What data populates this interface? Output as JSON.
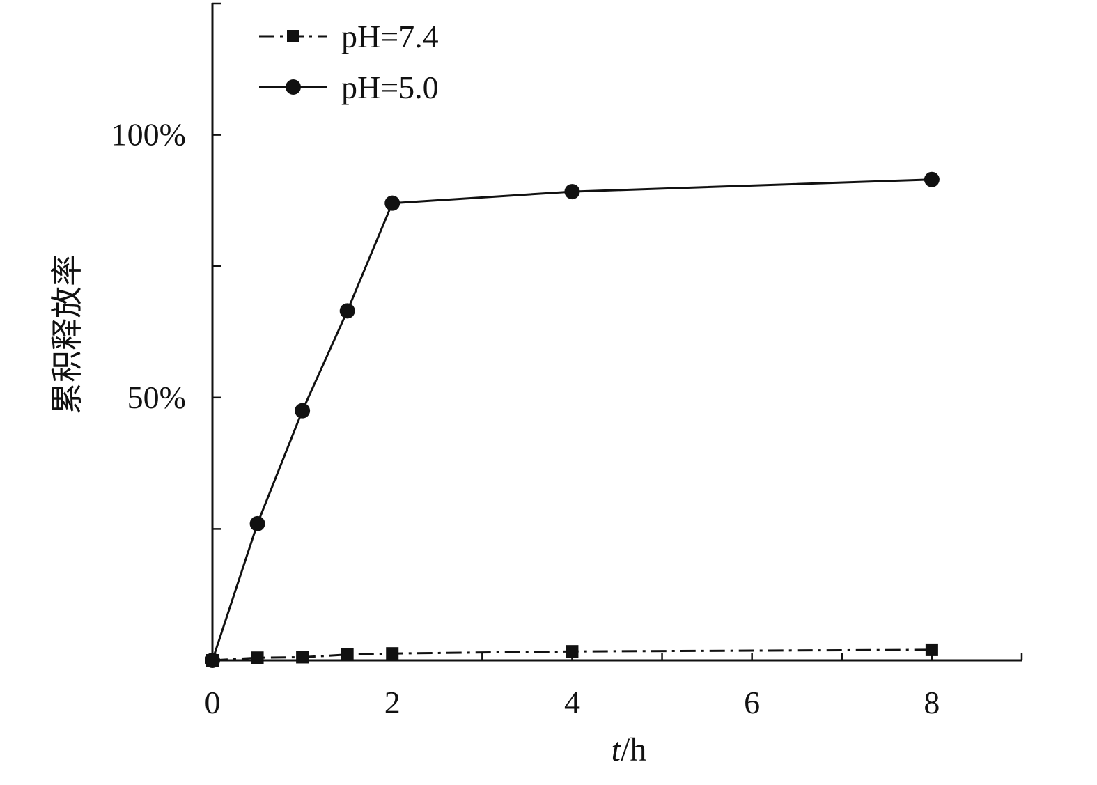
{
  "chart_data": {
    "type": "line",
    "xlabel": "t/h",
    "xlabel_italic_part": "t",
    "xlabel_rest": "/h",
    "ylabel": "累积释放率",
    "xlim": [
      0,
      9
    ],
    "ylim": [
      0,
      1.25
    ],
    "x_ticks": [
      0,
      1,
      2,
      3,
      4,
      5,
      6,
      7,
      8,
      9
    ],
    "x_tick_labels": [
      {
        "value": 0,
        "label": "0"
      },
      {
        "value": 2,
        "label": "2"
      },
      {
        "value": 4,
        "label": "4"
      },
      {
        "value": 6,
        "label": "6"
      },
      {
        "value": 8,
        "label": "8"
      }
    ],
    "y_ticks": [
      0,
      0.25,
      0.5,
      0.75,
      1.0
    ],
    "y_tick_labels": [
      {
        "value": 0.5,
        "label": "50%"
      },
      {
        "value": 1.0,
        "label": "100%"
      }
    ],
    "grid": false,
    "legend_position": "top-left",
    "series": [
      {
        "name": "pH=7.4",
        "marker": "square",
        "line_style": "dash-dot",
        "x": [
          0,
          0.5,
          1,
          1.5,
          2,
          4,
          8
        ],
        "y": [
          0.0,
          0.005,
          0.006,
          0.011,
          0.013,
          0.017,
          0.02
        ]
      },
      {
        "name": "pH=5.0",
        "marker": "circle",
        "line_style": "solid",
        "x": [
          0,
          0.5,
          1,
          1.5,
          2,
          4,
          8
        ],
        "y": [
          0.0,
          0.26,
          0.475,
          0.665,
          0.87,
          0.892,
          0.915
        ]
      }
    ],
    "colors": {
      "line": "#111111",
      "marker": "#111111"
    }
  }
}
